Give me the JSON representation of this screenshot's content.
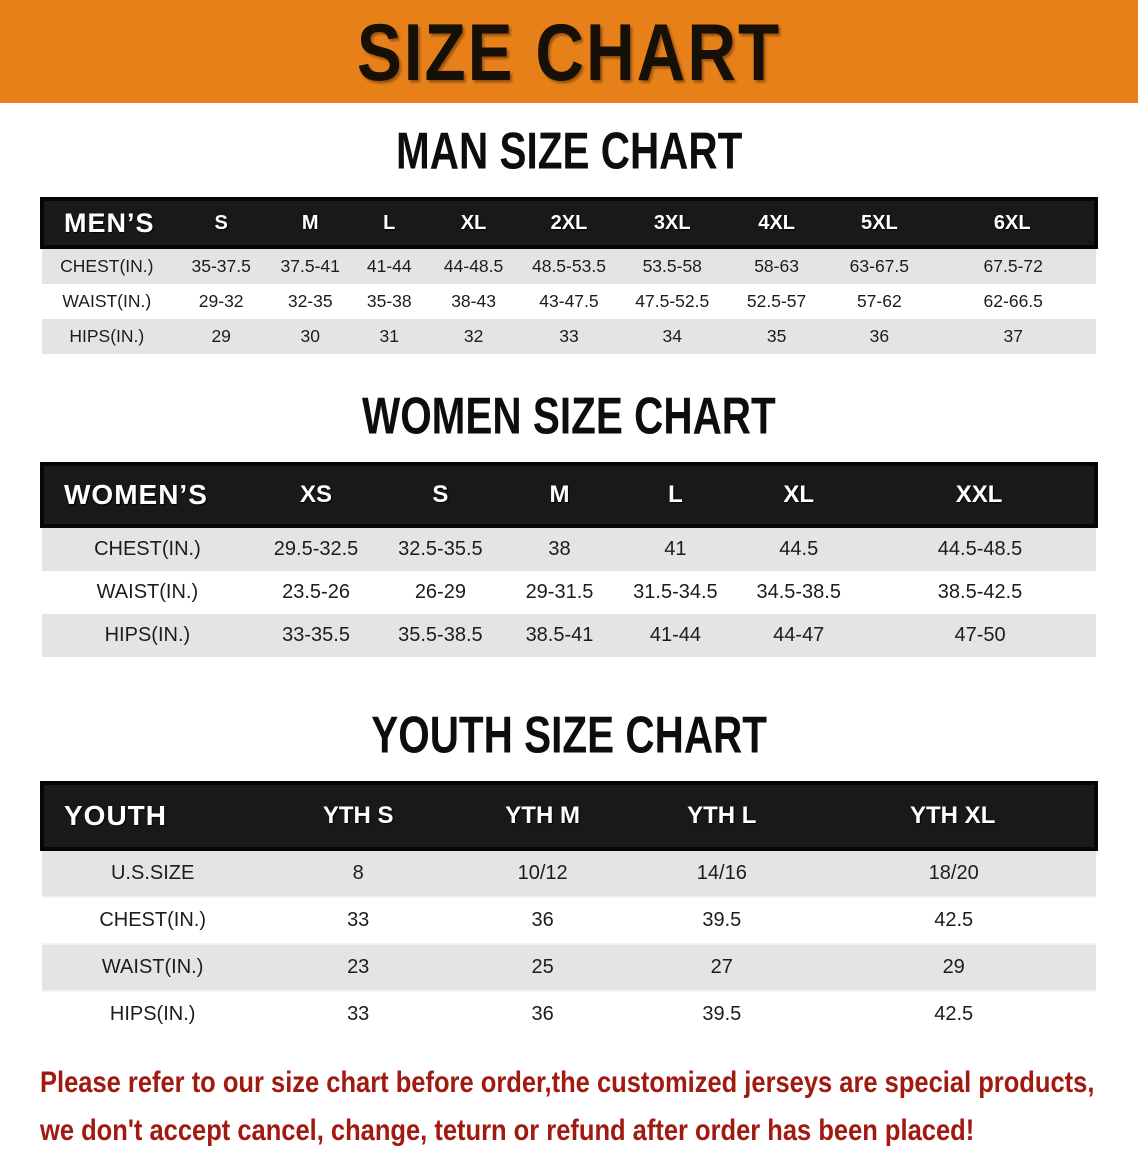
{
  "banner": {
    "title": "SIZE CHART",
    "bg_color": "#e8801a"
  },
  "men": {
    "heading": "MAN SIZE CHART",
    "corner": "MEN’S",
    "sizes": [
      "S",
      "M",
      "L",
      "XL",
      "2XL",
      "3XL",
      "4XL",
      "5XL",
      "6XL"
    ],
    "rows": [
      {
        "label": "CHEST(IN.)",
        "values": [
          "35-37.5",
          "37.5-41",
          "41-44",
          "44-48.5",
          "48.5-53.5",
          "53.5-58",
          "58-63",
          "63-67.5",
          "67.5-72"
        ]
      },
      {
        "label": "WAIST(IN.)",
        "values": [
          "29-32",
          "32-35",
          "35-38",
          "38-43",
          "43-47.5",
          "47.5-52.5",
          "52.5-57",
          "57-62",
          "62-66.5"
        ]
      },
      {
        "label": "HIPS(IN.)",
        "values": [
          "29",
          "30",
          "31",
          "32",
          "33",
          "34",
          "35",
          "36",
          "37"
        ]
      }
    ]
  },
  "women": {
    "heading": "WOMEN SIZE CHART",
    "corner": "WOMEN’S",
    "sizes": [
      "XS",
      "S",
      "M",
      "L",
      "XL",
      "XXL"
    ],
    "rows": [
      {
        "label": "CHEST(IN.)",
        "values": [
          "29.5-32.5",
          "32.5-35.5",
          "38",
          "41",
          "44.5",
          "44.5-48.5"
        ]
      },
      {
        "label": "WAIST(IN.)",
        "values": [
          "23.5-26",
          "26-29",
          "29-31.5",
          "31.5-34.5",
          "34.5-38.5",
          "38.5-42.5"
        ]
      },
      {
        "label": "HIPS(IN.)",
        "values": [
          "33-35.5",
          "35.5-38.5",
          "38.5-41",
          "41-44",
          "44-47",
          "47-50"
        ]
      }
    ]
  },
  "youth": {
    "heading": "YOUTH SIZE CHART",
    "corner": "YOUTH",
    "sizes": [
      "YTH S",
      "YTH M",
      "YTH L",
      "YTH XL"
    ],
    "rows": [
      {
        "label": "U.S.SIZE",
        "values": [
          "8",
          "10/12",
          "14/16",
          "18/20"
        ]
      },
      {
        "label": "CHEST(IN.)",
        "values": [
          "33",
          "36",
          "39.5",
          "42.5"
        ]
      },
      {
        "label": "WAIST(IN.)",
        "values": [
          "23",
          "25",
          "27",
          "29"
        ]
      },
      {
        "label": "HIPS(IN.)",
        "values": [
          "33",
          "36",
          "39.5",
          "42.5"
        ]
      }
    ]
  },
  "disclaimer": {
    "line1": "Please refer to our size chart before order,the customized jerseys are special products,",
    "line2": "we don't accept cancel, change, teturn or refund after order has been placed!",
    "color": "#a11a12"
  }
}
